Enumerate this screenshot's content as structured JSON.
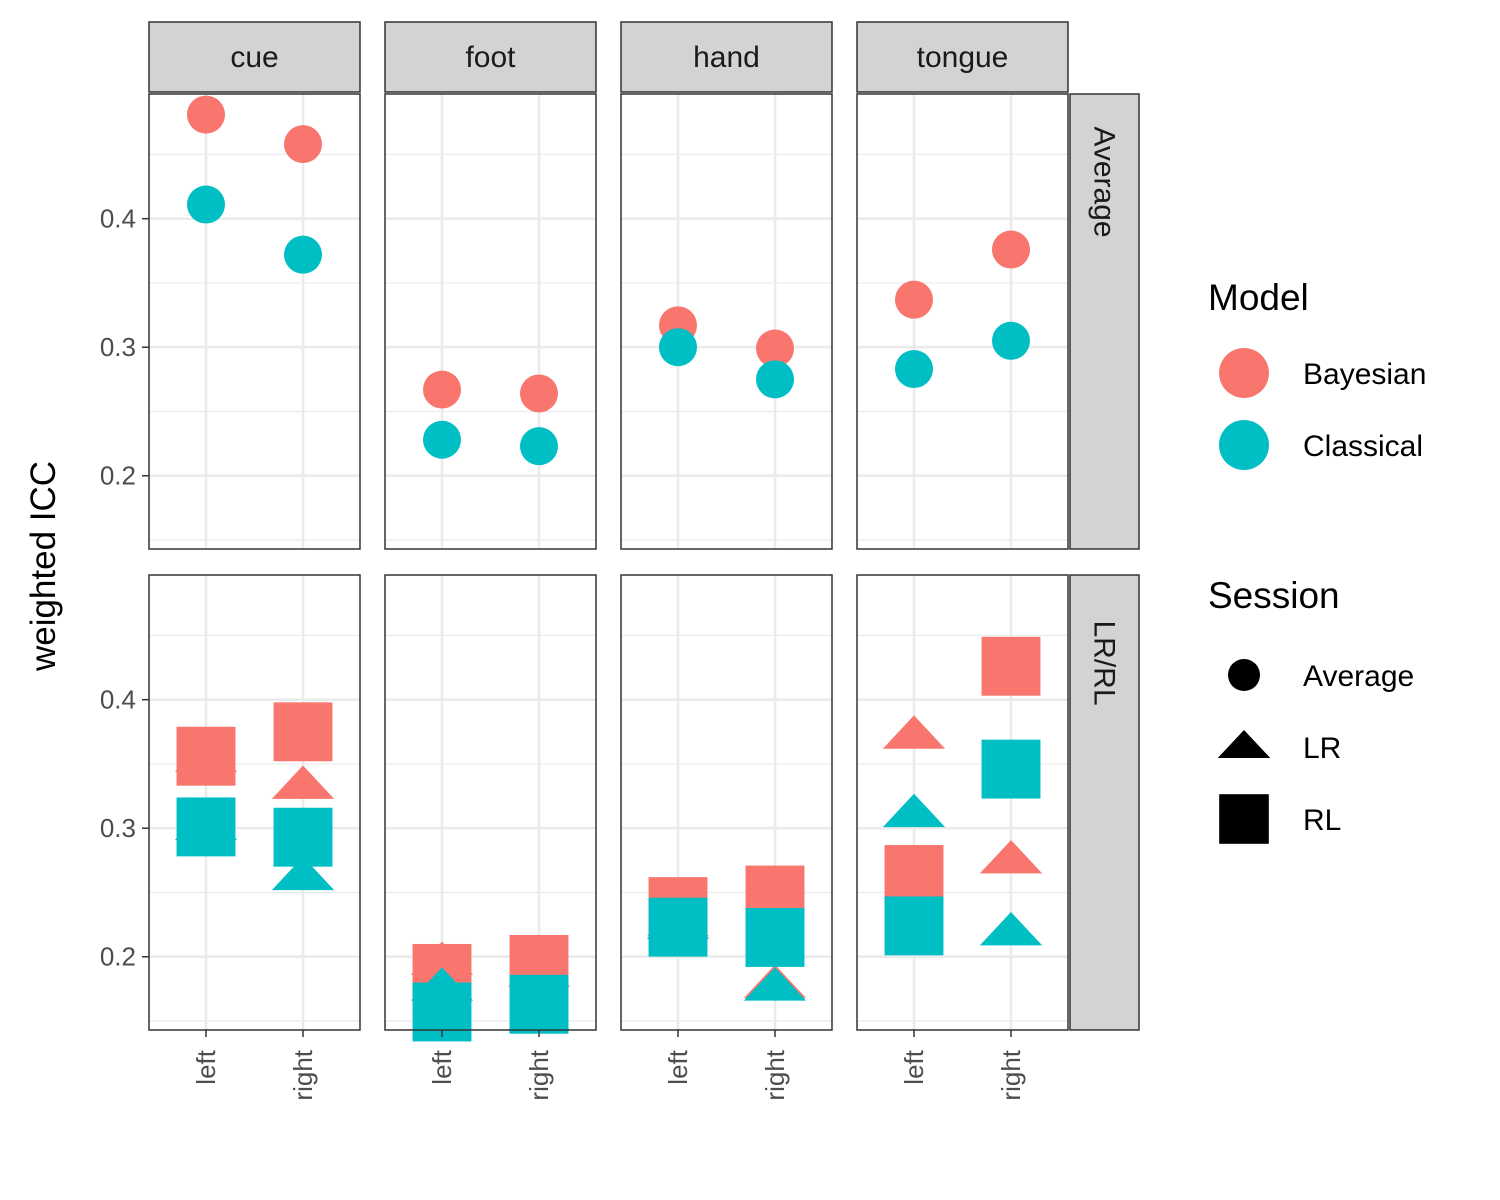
{
  "chart_data": {
    "type": "scatter",
    "facets": {
      "columns": [
        "cue",
        "foot",
        "hand",
        "tongue"
      ],
      "rows": [
        "Average",
        "LR/RL"
      ]
    },
    "x_categories": [
      "left",
      "right"
    ],
    "ylabel": "weighted ICC",
    "y_ticks": [
      0.2,
      0.3,
      0.4
    ],
    "y_tick_labels": [
      "0.2",
      "0.3",
      "0.4"
    ],
    "ylim": [
      0.143,
      0.497
    ],
    "grid": true,
    "legend_position": "right",
    "legend": {
      "model": {
        "title": "Model",
        "items": [
          {
            "label": "Bayesian",
            "color": "#F8766D"
          },
          {
            "label": "Classical",
            "color": "#00BFC4"
          }
        ]
      },
      "session": {
        "title": "Session",
        "items": [
          {
            "label": "Average",
            "shape": "circle"
          },
          {
            "label": "LR",
            "shape": "triangle"
          },
          {
            "label": "RL",
            "shape": "square"
          }
        ]
      }
    },
    "points": [
      {
        "row": "Average",
        "col": "cue",
        "x": "left",
        "model": "Bayesian",
        "session": "Average",
        "y": 0.481
      },
      {
        "row": "Average",
        "col": "cue",
        "x": "left",
        "model": "Classical",
        "session": "Average",
        "y": 0.411
      },
      {
        "row": "Average",
        "col": "cue",
        "x": "right",
        "model": "Bayesian",
        "session": "Average",
        "y": 0.458
      },
      {
        "row": "Average",
        "col": "cue",
        "x": "right",
        "model": "Classical",
        "session": "Average",
        "y": 0.372
      },
      {
        "row": "Average",
        "col": "foot",
        "x": "left",
        "model": "Bayesian",
        "session": "Average",
        "y": 0.267
      },
      {
        "row": "Average",
        "col": "foot",
        "x": "left",
        "model": "Classical",
        "session": "Average",
        "y": 0.228
      },
      {
        "row": "Average",
        "col": "foot",
        "x": "right",
        "model": "Bayesian",
        "session": "Average",
        "y": 0.264
      },
      {
        "row": "Average",
        "col": "foot",
        "x": "right",
        "model": "Classical",
        "session": "Average",
        "y": 0.223
      },
      {
        "row": "Average",
        "col": "hand",
        "x": "left",
        "model": "Bayesian",
        "session": "Average",
        "y": 0.317
      },
      {
        "row": "Average",
        "col": "hand",
        "x": "left",
        "model": "Classical",
        "session": "Average",
        "y": 0.3
      },
      {
        "row": "Average",
        "col": "hand",
        "x": "right",
        "model": "Bayesian",
        "session": "Average",
        "y": 0.299
      },
      {
        "row": "Average",
        "col": "hand",
        "x": "right",
        "model": "Classical",
        "session": "Average",
        "y": 0.275
      },
      {
        "row": "Average",
        "col": "tongue",
        "x": "left",
        "model": "Bayesian",
        "session": "Average",
        "y": 0.337
      },
      {
        "row": "Average",
        "col": "tongue",
        "x": "left",
        "model": "Classical",
        "session": "Average",
        "y": 0.283
      },
      {
        "row": "Average",
        "col": "tongue",
        "x": "right",
        "model": "Bayesian",
        "session": "Average",
        "y": 0.376
      },
      {
        "row": "Average",
        "col": "tongue",
        "x": "right",
        "model": "Classical",
        "session": "Average",
        "y": 0.305
      },
      {
        "row": "LR/RL",
        "col": "cue",
        "x": "left",
        "model": "Bayesian",
        "session": "LR",
        "y": 0.354
      },
      {
        "row": "LR/RL",
        "col": "cue",
        "x": "left",
        "model": "Bayesian",
        "session": "RL",
        "y": 0.356
      },
      {
        "row": "LR/RL",
        "col": "cue",
        "x": "left",
        "model": "Classical",
        "session": "LR",
        "y": 0.301
      },
      {
        "row": "LR/RL",
        "col": "cue",
        "x": "left",
        "model": "Classical",
        "session": "RL",
        "y": 0.301
      },
      {
        "row": "LR/RL",
        "col": "cue",
        "x": "right",
        "model": "Bayesian",
        "session": "LR",
        "y": 0.333
      },
      {
        "row": "LR/RL",
        "col": "cue",
        "x": "right",
        "model": "Bayesian",
        "session": "RL",
        "y": 0.375
      },
      {
        "row": "LR/RL",
        "col": "cue",
        "x": "right",
        "model": "Classical",
        "session": "LR",
        "y": 0.262
      },
      {
        "row": "LR/RL",
        "col": "cue",
        "x": "right",
        "model": "Classical",
        "session": "RL",
        "y": 0.293
      },
      {
        "row": "LR/RL",
        "col": "foot",
        "x": "left",
        "model": "Bayesian",
        "session": "LR",
        "y": 0.196
      },
      {
        "row": "LR/RL",
        "col": "foot",
        "x": "left",
        "model": "Bayesian",
        "session": "RL",
        "y": 0.187
      },
      {
        "row": "LR/RL",
        "col": "foot",
        "x": "left",
        "model": "Classical",
        "session": "LR",
        "y": 0.176
      },
      {
        "row": "LR/RL",
        "col": "foot",
        "x": "left",
        "model": "Classical",
        "session": "RL",
        "y": 0.157
      },
      {
        "row": "LR/RL",
        "col": "foot",
        "x": "right",
        "model": "Bayesian",
        "session": "LR",
        "y": 0.187
      },
      {
        "row": "LR/RL",
        "col": "foot",
        "x": "right",
        "model": "Bayesian",
        "session": "RL",
        "y": 0.194
      },
      {
        "row": "LR/RL",
        "col": "foot",
        "x": "right",
        "model": "Classical",
        "session": "LR",
        "y": 0.153
      },
      {
        "row": "LR/RL",
        "col": "foot",
        "x": "right",
        "model": "Classical",
        "session": "RL",
        "y": 0.163
      },
      {
        "row": "LR/RL",
        "col": "hand",
        "x": "left",
        "model": "Bayesian",
        "session": "LR",
        "y": 0.226
      },
      {
        "row": "LR/RL",
        "col": "hand",
        "x": "left",
        "model": "Bayesian",
        "session": "RL",
        "y": 0.239
      },
      {
        "row": "LR/RL",
        "col": "hand",
        "x": "left",
        "model": "Classical",
        "session": "LR",
        "y": 0.224
      },
      {
        "row": "LR/RL",
        "col": "hand",
        "x": "left",
        "model": "Classical",
        "session": "RL",
        "y": 0.223
      },
      {
        "row": "LR/RL",
        "col": "hand",
        "x": "right",
        "model": "Bayesian",
        "session": "LR",
        "y": 0.178
      },
      {
        "row": "LR/RL",
        "col": "hand",
        "x": "right",
        "model": "Bayesian",
        "session": "RL",
        "y": 0.248
      },
      {
        "row": "LR/RL",
        "col": "hand",
        "x": "right",
        "model": "Classical",
        "session": "LR",
        "y": 0.176
      },
      {
        "row": "LR/RL",
        "col": "hand",
        "x": "right",
        "model": "Classical",
        "session": "RL",
        "y": 0.215
      },
      {
        "row": "LR/RL",
        "col": "tongue",
        "x": "left",
        "model": "Bayesian",
        "session": "LR",
        "y": 0.372
      },
      {
        "row": "LR/RL",
        "col": "tongue",
        "x": "left",
        "model": "Bayesian",
        "session": "RL",
        "y": 0.264
      },
      {
        "row": "LR/RL",
        "col": "tongue",
        "x": "left",
        "model": "Classical",
        "session": "LR",
        "y": 0.311
      },
      {
        "row": "LR/RL",
        "col": "tongue",
        "x": "left",
        "model": "Classical",
        "session": "RL",
        "y": 0.224
      },
      {
        "row": "LR/RL",
        "col": "tongue",
        "x": "right",
        "model": "Bayesian",
        "session": "LR",
        "y": 0.275
      },
      {
        "row": "LR/RL",
        "col": "tongue",
        "x": "right",
        "model": "Bayesian",
        "session": "RL",
        "y": 0.426
      },
      {
        "row": "LR/RL",
        "col": "tongue",
        "x": "right",
        "model": "Classical",
        "session": "LR",
        "y": 0.219
      },
      {
        "row": "LR/RL",
        "col": "tongue",
        "x": "right",
        "model": "Classical",
        "session": "RL",
        "y": 0.346
      }
    ]
  }
}
